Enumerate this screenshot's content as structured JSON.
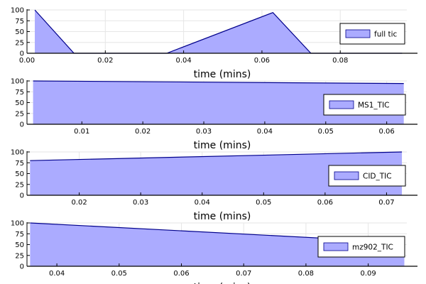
{
  "colors": {
    "fill": "#ababff",
    "line": "#00008b",
    "grid": "#e6e6e6",
    "axis": "#000000"
  },
  "chart_data": [
    {
      "type": "area",
      "xlabel": "time (mins)",
      "xlim": [
        0.0,
        0.097
      ],
      "ylim": [
        0,
        100
      ],
      "xticks": [
        0.0,
        0.02,
        0.04,
        0.06,
        0.08
      ],
      "xtick_labels": [
        "0.00",
        "0.02",
        "0.04",
        "0.06",
        "0.08"
      ],
      "yticks": [
        0,
        25,
        50,
        75,
        100
      ],
      "ytick_labels": [
        "0",
        "25",
        "50",
        "75",
        "100"
      ],
      "grid": true,
      "legend_position": "right",
      "series": [
        {
          "name": "full tic",
          "x": [
            0.002,
            0.012,
            0.0357,
            0.0628,
            0.0725,
            0.0958
          ],
          "y": [
            100,
            0,
            0,
            94,
            0,
            0
          ]
        }
      ]
    },
    {
      "type": "area",
      "xlabel": "time (mins)",
      "xlim": [
        0.001,
        0.0633
      ],
      "ylim": [
        0,
        100
      ],
      "xticks": [
        0.01,
        0.02,
        0.03,
        0.04,
        0.05,
        0.06
      ],
      "xtick_labels": [
        "0.01",
        "0.02",
        "0.03",
        "0.04",
        "0.05",
        "0.06"
      ],
      "yticks": [
        0,
        25,
        50,
        75,
        100
      ],
      "ytick_labels": [
        "0",
        "25",
        "50",
        "75",
        "100"
      ],
      "grid": true,
      "legend_position": "right",
      "series": [
        {
          "name": "MS1_TIC",
          "x": [
            0.002,
            0.0628
          ],
          "y": [
            100,
            94
          ]
        }
      ]
    },
    {
      "type": "area",
      "xlabel": "time (mins)",
      "xlim": [
        0.0115,
        0.0733
      ],
      "ylim": [
        0,
        100
      ],
      "xticks": [
        0.02,
        0.03,
        0.04,
        0.05,
        0.06,
        0.07
      ],
      "xtick_labels": [
        "0.02",
        "0.03",
        "0.04",
        "0.05",
        "0.06",
        "0.07"
      ],
      "yticks": [
        0,
        25,
        50,
        75,
        100
      ],
      "ytick_labels": [
        "0",
        "25",
        "50",
        "75",
        "100"
      ],
      "grid": true,
      "legend_position": "right",
      "series": [
        {
          "name": "CID_TIC",
          "x": [
            0.012,
            0.0725
          ],
          "y": [
            80,
            100
          ]
        }
      ]
    },
    {
      "type": "area",
      "xlabel": "time (mins)",
      "xlim": [
        0.0352,
        0.0962
      ],
      "ylim": [
        0,
        100
      ],
      "xticks": [
        0.04,
        0.05,
        0.06,
        0.07,
        0.08,
        0.09
      ],
      "xtick_labels": [
        "0.04",
        "0.05",
        "0.06",
        "0.07",
        "0.08",
        "0.09"
      ],
      "yticks": [
        0,
        25,
        50,
        75,
        100
      ],
      "ytick_labels": [
        "0",
        "25",
        "50",
        "75",
        "100"
      ],
      "grid": true,
      "legend_position": "right",
      "series": [
        {
          "name": "mz902_TIC",
          "x": [
            0.0357,
            0.0958
          ],
          "y": [
            100,
            55
          ]
        }
      ]
    }
  ]
}
